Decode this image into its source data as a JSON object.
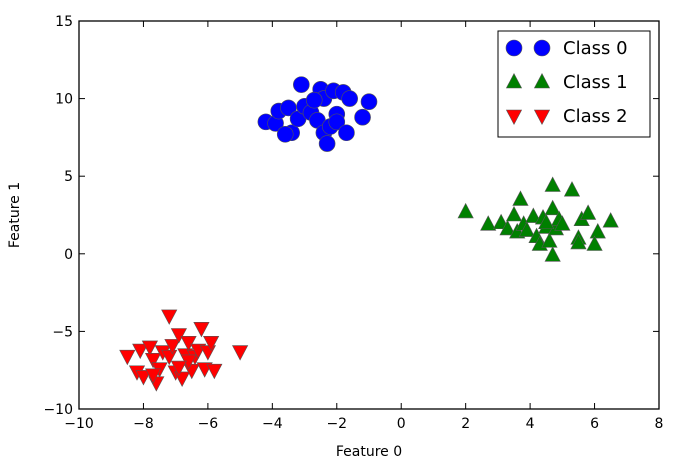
{
  "chart_data": {
    "type": "scatter",
    "title": "",
    "xlabel": "Feature 0",
    "ylabel": "Feature 1",
    "xlim": [
      -10,
      8
    ],
    "ylim": [
      -10,
      15
    ],
    "xticks": [
      -10,
      -8,
      -6,
      -4,
      -2,
      0,
      2,
      4,
      6,
      8
    ],
    "yticks": [
      -10,
      -5,
      0,
      5,
      10,
      15
    ],
    "xtick_labels": [
      "−10",
      "−8",
      "−6",
      "−4",
      "−2",
      "0",
      "2",
      "4",
      "6",
      "8"
    ],
    "ytick_labels": [
      "−10",
      "−5",
      "0",
      "5",
      "10",
      "15"
    ],
    "grid": false,
    "legend_position": "top-right",
    "series": [
      {
        "name": "Class 0",
        "marker": "circle",
        "color": "#0000ff",
        "points": [
          [
            -4.2,
            8.5
          ],
          [
            -3.9,
            8.4
          ],
          [
            -3.8,
            9.2
          ],
          [
            -3.5,
            9.4
          ],
          [
            -3.4,
            7.8
          ],
          [
            -3.2,
            8.7
          ],
          [
            -3.1,
            10.9
          ],
          [
            -3.0,
            9.5
          ],
          [
            -2.8,
            9.1
          ],
          [
            -2.6,
            8.6
          ],
          [
            -2.5,
            10.6
          ],
          [
            -2.4,
            10.0
          ],
          [
            -2.4,
            7.8
          ],
          [
            -2.2,
            8.2
          ],
          [
            -2.1,
            10.5
          ],
          [
            -2.0,
            9.0
          ],
          [
            -2.0,
            8.5
          ],
          [
            -1.8,
            10.4
          ],
          [
            -1.6,
            10.0
          ],
          [
            -1.7,
            7.8
          ],
          [
            -1.2,
            8.8
          ],
          [
            -1.0,
            9.8
          ],
          [
            -2.3,
            7.1
          ],
          [
            -3.6,
            7.7
          ],
          [
            -2.7,
            9.9
          ]
        ]
      },
      {
        "name": "Class 1",
        "marker": "triangle-up",
        "color": "#008000",
        "points": [
          [
            2.0,
            2.7
          ],
          [
            2.7,
            1.9
          ],
          [
            3.1,
            2.0
          ],
          [
            3.3,
            1.6
          ],
          [
            3.5,
            2.5
          ],
          [
            3.6,
            1.4
          ],
          [
            3.7,
            3.5
          ],
          [
            3.8,
            1.9
          ],
          [
            3.9,
            1.5
          ],
          [
            4.1,
            2.4
          ],
          [
            4.2,
            1.1
          ],
          [
            4.3,
            0.6
          ],
          [
            4.4,
            2.3
          ],
          [
            4.5,
            1.7
          ],
          [
            4.6,
            0.8
          ],
          [
            4.7,
            2.9
          ],
          [
            4.7,
            4.4
          ],
          [
            4.8,
            1.6
          ],
          [
            4.9,
            2.2
          ],
          [
            5.0,
            1.9
          ],
          [
            5.3,
            4.1
          ],
          [
            5.5,
            1.0
          ],
          [
            5.6,
            2.2
          ],
          [
            5.8,
            2.6
          ],
          [
            6.1,
            1.4
          ],
          [
            6.0,
            0.6
          ],
          [
            6.5,
            2.1
          ],
          [
            4.7,
            -0.1
          ],
          [
            5.5,
            0.7
          ],
          [
            4.5,
            2.0
          ]
        ]
      },
      {
        "name": "Class 2",
        "marker": "triangle-down",
        "color": "#ff0000",
        "points": [
          [
            -8.5,
            -6.6
          ],
          [
            -8.2,
            -7.6
          ],
          [
            -8.1,
            -6.2
          ],
          [
            -8.0,
            -7.9
          ],
          [
            -7.8,
            -6.0
          ],
          [
            -7.7,
            -6.8
          ],
          [
            -7.6,
            -8.3
          ],
          [
            -7.5,
            -7.4
          ],
          [
            -7.4,
            -6.3
          ],
          [
            -7.2,
            -6.6
          ],
          [
            -7.1,
            -5.9
          ],
          [
            -7.0,
            -7.6
          ],
          [
            -6.9,
            -5.2
          ],
          [
            -6.8,
            -8.0
          ],
          [
            -6.7,
            -6.5
          ],
          [
            -6.6,
            -5.7
          ],
          [
            -6.5,
            -7.5
          ],
          [
            -6.4,
            -6.6
          ],
          [
            -6.3,
            -6.2
          ],
          [
            -6.2,
            -4.8
          ],
          [
            -6.1,
            -7.4
          ],
          [
            -6.0,
            -6.3
          ],
          [
            -5.9,
            -5.7
          ],
          [
            -5.8,
            -7.5
          ],
          [
            -5.0,
            -6.3
          ],
          [
            -7.2,
            -4.0
          ],
          [
            -6.6,
            -6.9
          ],
          [
            -7.7,
            -7.8
          ],
          [
            -6.9,
            -7.3
          ]
        ]
      }
    ]
  }
}
